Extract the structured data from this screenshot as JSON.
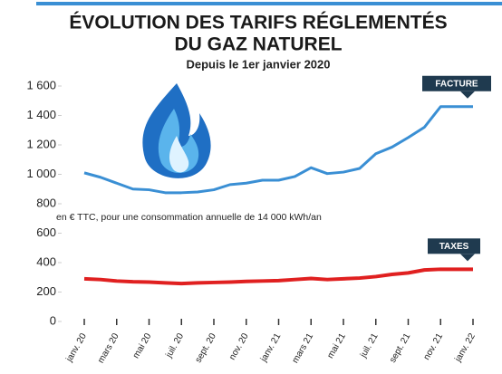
{
  "chart_data": {
    "type": "line",
    "title": "ÉVOLUTION DES TARIFS RÉGLEMENTÉS",
    "title_line2": "DU GAZ NATUREL",
    "subtitle": "Depuis le 1er janvier 2020",
    "annotation": "en € TTC, pour une consommation annuelle de 14 000 kWh/an",
    "categories": [
      "janv. 20",
      null,
      "mars 20",
      null,
      "mai 20",
      null,
      "juil. 20",
      null,
      "sept. 20",
      null,
      "nov. 20",
      null,
      "janv. 21",
      null,
      "mars 21",
      null,
      "mai 21",
      null,
      "juil. 21",
      null,
      "sept. 21",
      null,
      "nov. 21",
      null,
      "janv. 22"
    ],
    "series": [
      {
        "name": "FACTURE",
        "color": "#3a8fd4",
        "values": [
          1010,
          980,
          940,
          900,
          895,
          875,
          875,
          880,
          895,
          930,
          940,
          960,
          960,
          985,
          1045,
          1005,
          1015,
          1040,
          1140,
          1185,
          1250,
          1320,
          1460,
          1460,
          1460
        ]
      },
      {
        "name": "TAXES",
        "color": "#e02020",
        "values": [
          290,
          285,
          275,
          270,
          268,
          262,
          258,
          262,
          265,
          268,
          272,
          275,
          278,
          285,
          292,
          285,
          290,
          295,
          305,
          320,
          330,
          350,
          355,
          355,
          355
        ]
      }
    ],
    "ylim": [
      0,
      1600
    ],
    "yticks": [
      0,
      200,
      400,
      600,
      800,
      {
        "value": 1000,
        "label": "1 000"
      },
      {
        "value": 1200,
        "label": "1 200"
      },
      {
        "value": 1400,
        "label": "1 400"
      },
      {
        "value": 1600,
        "label": "1 600"
      }
    ],
    "grid": false
  }
}
